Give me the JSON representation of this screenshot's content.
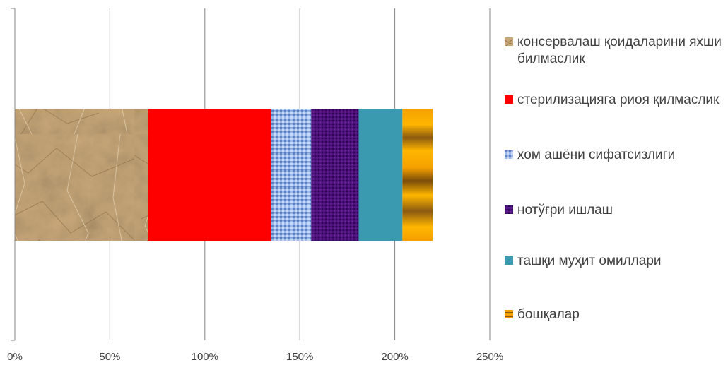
{
  "chart_data": {
    "type": "bar",
    "orientation": "horizontal",
    "stacked": true,
    "title": "",
    "xlabel": "",
    "ylabel": "",
    "xlim": [
      0,
      2.5
    ],
    "x_ticks": [
      "0%",
      "50%",
      "100%",
      "150%",
      "200%",
      "250%"
    ],
    "grid": true,
    "legend_position": "right",
    "categories": [
      ""
    ],
    "series": [
      {
        "name": "консервалаш қоидаларини яхши билмаслик",
        "values": [
          0.7
        ],
        "color": "#c8a87a",
        "pattern": "crumpled-paper"
      },
      {
        "name": "стерилизацияга риоя қилмаслик",
        "values": [
          0.65
        ],
        "color": "#ff0000",
        "pattern": "solid"
      },
      {
        "name": "хом ашёни сифатсизлиги",
        "values": [
          0.21
        ],
        "color": "#8fb0e6",
        "pattern": "woven"
      },
      {
        "name": "нотўғри ишлаш",
        "values": [
          0.25
        ],
        "color": "#4b0f7a",
        "pattern": "fabric"
      },
      {
        "name": "ташқи муҳит омиллари",
        "values": [
          0.23
        ],
        "color": "#3a9bb0",
        "pattern": "solid"
      },
      {
        "name": "бошқалар",
        "values": [
          0.16
        ],
        "color": "#f5a000",
        "pattern": "horizontal-gradient"
      }
    ]
  }
}
